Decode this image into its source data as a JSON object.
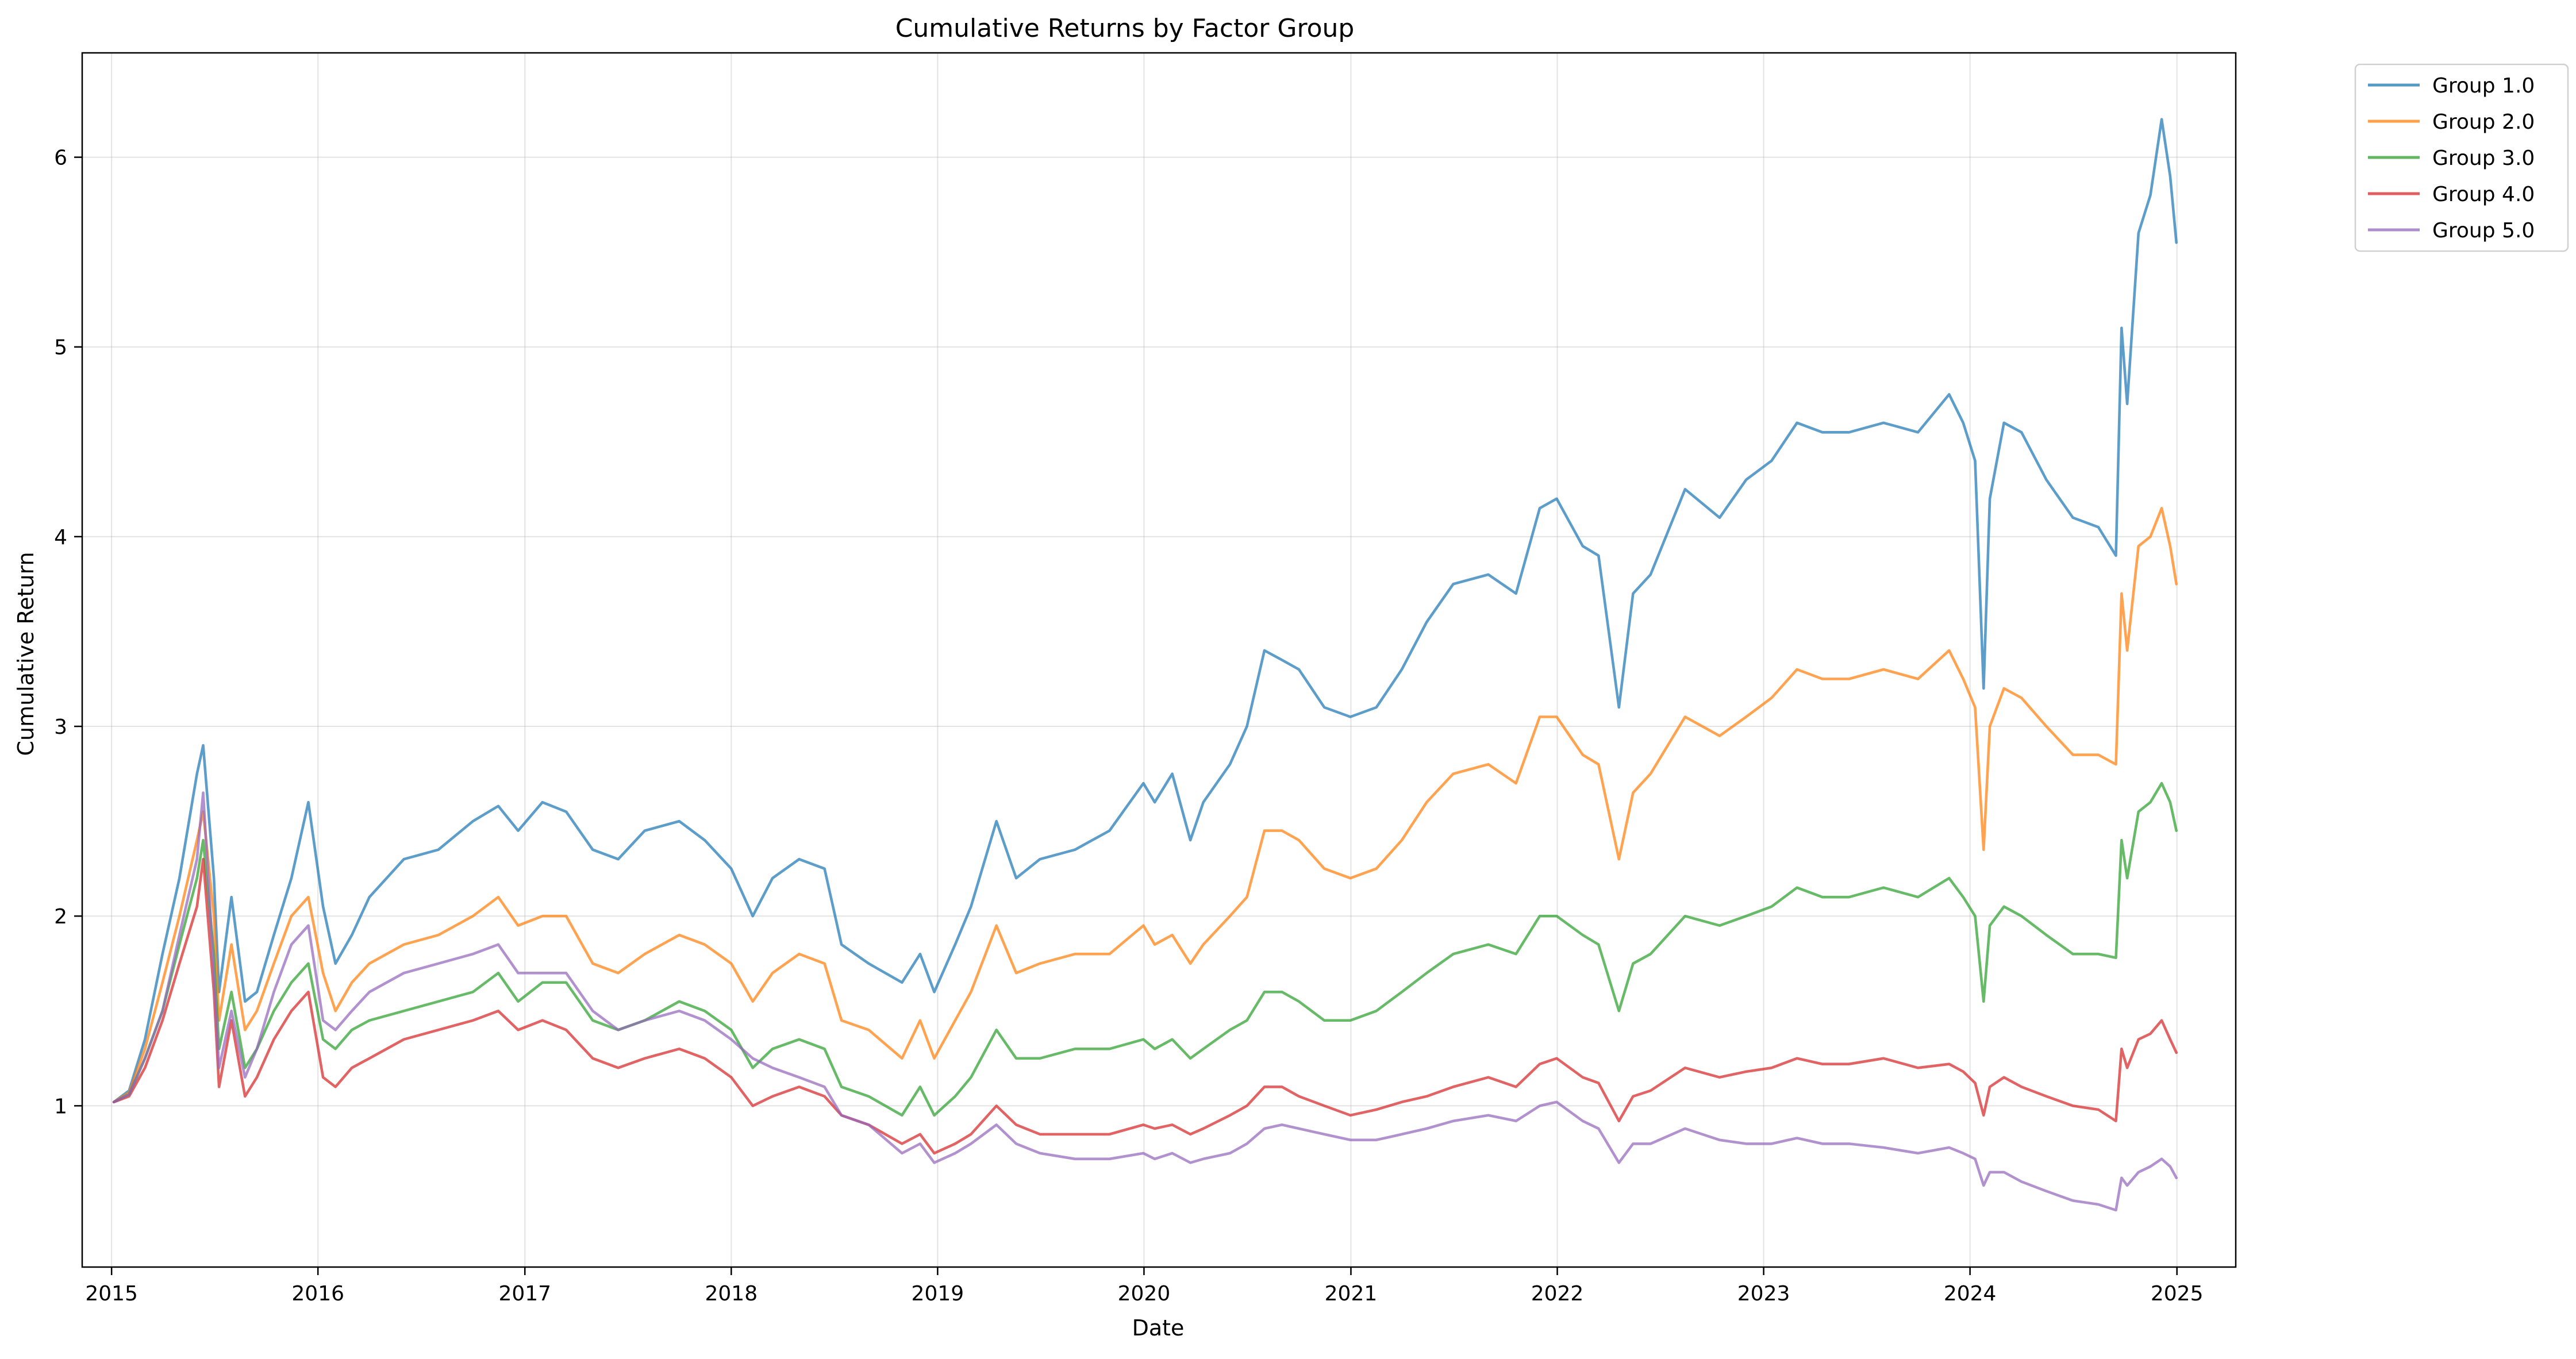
{
  "chart_data": {
    "type": "line",
    "title": "Cumulative Returns by Factor Group",
    "xlabel": "Date",
    "ylabel": "Cumulative Return",
    "x_ticks": [
      "2015",
      "2016",
      "2017",
      "2018",
      "2019",
      "2020",
      "2021",
      "2022",
      "2023",
      "2024",
      "2025"
    ],
    "y_ticks": [
      "1",
      "2",
      "3",
      "4",
      "5",
      "6"
    ],
    "xlim": [
      "2014-11-10",
      "2025-04-15"
    ],
    "ylim": [
      0.15,
      6.55
    ],
    "grid": true,
    "legend_position": "outside-top-right",
    "x": [
      "2015-01-05",
      "2015-02-01",
      "2015-03-01",
      "2015-04-01",
      "2015-05-01",
      "2015-06-01",
      "2015-06-12",
      "2015-07-01",
      "2015-07-10",
      "2015-08-01",
      "2015-08-25",
      "2015-09-15",
      "2015-10-15",
      "2015-11-15",
      "2015-12-15",
      "2016-01-10",
      "2016-02-01",
      "2016-03-01",
      "2016-04-01",
      "2016-06-01",
      "2016-08-01",
      "2016-10-01",
      "2016-11-15",
      "2016-12-20",
      "2017-02-01",
      "2017-03-15",
      "2017-05-01",
      "2017-06-15",
      "2017-08-01",
      "2017-10-01",
      "2017-11-15",
      "2018-01-01",
      "2018-02-08",
      "2018-03-15",
      "2018-05-01",
      "2018-06-15",
      "2018-07-15",
      "2018-09-01",
      "2018-10-30",
      "2018-12-01",
      "2018-12-26",
      "2019-02-01",
      "2019-03-01",
      "2019-04-15",
      "2019-05-20",
      "2019-07-01",
      "2019-09-01",
      "2019-11-01",
      "2019-12-31",
      "2020-01-20",
      "2020-02-20",
      "2020-03-23",
      "2020-04-15",
      "2020-06-01",
      "2020-07-01",
      "2020-08-01",
      "2020-09-01",
      "2020-10-01",
      "2020-11-15",
      "2020-12-31",
      "2021-02-15",
      "2021-04-01",
      "2021-05-15",
      "2021-07-01",
      "2021-09-01",
      "2021-10-20",
      "2021-12-01",
      "2021-12-31",
      "2022-02-15",
      "2022-03-15",
      "2022-04-20",
      "2022-05-15",
      "2022-06-15",
      "2022-08-15",
      "2022-10-15",
      "2022-12-01",
      "2023-01-15",
      "2023-03-01",
      "2023-04-15",
      "2023-06-01",
      "2023-08-01",
      "2023-10-01",
      "2023-11-25",
      "2023-12-20",
      "2024-01-10",
      "2024-01-25",
      "2024-02-05",
      "2024-03-01",
      "2024-04-01",
      "2024-05-15",
      "2024-07-01",
      "2024-08-15",
      "2024-09-15",
      "2024-09-25",
      "2024-10-05",
      "2024-10-25",
      "2024-11-15",
      "2024-12-05",
      "2024-12-20",
      "2024-12-31"
    ],
    "series": [
      {
        "name": "Group 1.0",
        "color": "#1f77b4",
        "values": [
          1.02,
          1.08,
          1.35,
          1.8,
          2.2,
          2.75,
          2.9,
          2.2,
          1.6,
          2.1,
          1.55,
          1.6,
          1.9,
          2.2,
          2.6,
          2.05,
          1.75,
          1.9,
          2.1,
          2.3,
          2.35,
          2.5,
          2.58,
          2.45,
          2.6,
          2.55,
          2.35,
          2.3,
          2.45,
          2.5,
          2.4,
          2.25,
          2.0,
          2.2,
          2.3,
          2.25,
          1.85,
          1.75,
          1.65,
          1.8,
          1.6,
          1.85,
          2.05,
          2.5,
          2.2,
          2.3,
          2.35,
          2.45,
          2.7,
          2.6,
          2.75,
          2.4,
          2.6,
          2.8,
          3.0,
          3.4,
          3.35,
          3.3,
          3.1,
          3.05,
          3.1,
          3.3,
          3.55,
          3.75,
          3.8,
          3.7,
          4.15,
          4.2,
          3.95,
          3.9,
          3.1,
          3.7,
          3.8,
          4.25,
          4.1,
          4.3,
          4.4,
          4.6,
          4.55,
          4.55,
          4.6,
          4.55,
          4.75,
          4.6,
          4.4,
          3.2,
          4.2,
          4.6,
          4.55,
          4.3,
          4.1,
          4.05,
          3.9,
          5.1,
          4.7,
          5.6,
          5.8,
          6.2,
          5.9,
          5.55
        ]
      },
      {
        "name": "Group 2.0",
        "color": "#ff7f0e",
        "values": [
          1.02,
          1.07,
          1.3,
          1.65,
          2.0,
          2.4,
          2.55,
          2.0,
          1.45,
          1.85,
          1.4,
          1.5,
          1.75,
          2.0,
          2.1,
          1.7,
          1.5,
          1.65,
          1.75,
          1.85,
          1.9,
          2.0,
          2.1,
          1.95,
          2.0,
          2.0,
          1.75,
          1.7,
          1.8,
          1.9,
          1.85,
          1.75,
          1.55,
          1.7,
          1.8,
          1.75,
          1.45,
          1.4,
          1.25,
          1.45,
          1.25,
          1.45,
          1.6,
          1.95,
          1.7,
          1.75,
          1.8,
          1.8,
          1.95,
          1.85,
          1.9,
          1.75,
          1.85,
          2.0,
          2.1,
          2.45,
          2.45,
          2.4,
          2.25,
          2.2,
          2.25,
          2.4,
          2.6,
          2.75,
          2.8,
          2.7,
          3.05,
          3.05,
          2.85,
          2.8,
          2.3,
          2.65,
          2.75,
          3.05,
          2.95,
          3.05,
          3.15,
          3.3,
          3.25,
          3.25,
          3.3,
          3.25,
          3.4,
          3.25,
          3.1,
          2.35,
          3.0,
          3.2,
          3.15,
          3.0,
          2.85,
          2.85,
          2.8,
          3.7,
          3.4,
          3.95,
          4.0,
          4.15,
          3.95,
          3.75
        ]
      },
      {
        "name": "Group 3.0",
        "color": "#2ca02c",
        "values": [
          1.02,
          1.06,
          1.25,
          1.5,
          1.85,
          2.2,
          2.4,
          1.8,
          1.3,
          1.6,
          1.2,
          1.3,
          1.5,
          1.65,
          1.75,
          1.35,
          1.3,
          1.4,
          1.45,
          1.5,
          1.55,
          1.6,
          1.7,
          1.55,
          1.65,
          1.65,
          1.45,
          1.4,
          1.45,
          1.55,
          1.5,
          1.4,
          1.2,
          1.3,
          1.35,
          1.3,
          1.1,
          1.05,
          0.95,
          1.1,
          0.95,
          1.05,
          1.15,
          1.4,
          1.25,
          1.25,
          1.3,
          1.3,
          1.35,
          1.3,
          1.35,
          1.25,
          1.3,
          1.4,
          1.45,
          1.6,
          1.6,
          1.55,
          1.45,
          1.45,
          1.5,
          1.6,
          1.7,
          1.8,
          1.85,
          1.8,
          2.0,
          2.0,
          1.9,
          1.85,
          1.5,
          1.75,
          1.8,
          2.0,
          1.95,
          2.0,
          2.05,
          2.15,
          2.1,
          2.1,
          2.15,
          2.1,
          2.2,
          2.1,
          2.0,
          1.55,
          1.95,
          2.05,
          2.0,
          1.9,
          1.8,
          1.8,
          1.78,
          2.4,
          2.2,
          2.55,
          2.6,
          2.7,
          2.6,
          2.45
        ]
      },
      {
        "name": "Group 4.0",
        "color": "#d62728",
        "values": [
          1.02,
          1.05,
          1.2,
          1.45,
          1.75,
          2.05,
          2.3,
          1.6,
          1.1,
          1.45,
          1.05,
          1.15,
          1.35,
          1.5,
          1.6,
          1.15,
          1.1,
          1.2,
          1.25,
          1.35,
          1.4,
          1.45,
          1.5,
          1.4,
          1.45,
          1.4,
          1.25,
          1.2,
          1.25,
          1.3,
          1.25,
          1.15,
          1.0,
          1.05,
          1.1,
          1.05,
          0.95,
          0.9,
          0.8,
          0.85,
          0.75,
          0.8,
          0.85,
          1.0,
          0.9,
          0.85,
          0.85,
          0.85,
          0.9,
          0.88,
          0.9,
          0.85,
          0.88,
          0.95,
          1.0,
          1.1,
          1.1,
          1.05,
          1.0,
          0.95,
          0.98,
          1.02,
          1.05,
          1.1,
          1.15,
          1.1,
          1.22,
          1.25,
          1.15,
          1.12,
          0.92,
          1.05,
          1.08,
          1.2,
          1.15,
          1.18,
          1.2,
          1.25,
          1.22,
          1.22,
          1.25,
          1.2,
          1.22,
          1.18,
          1.12,
          0.95,
          1.1,
          1.15,
          1.1,
          1.05,
          1.0,
          0.98,
          0.92,
          1.3,
          1.2,
          1.35,
          1.38,
          1.45,
          1.35,
          1.28
        ]
      },
      {
        "name": "Group 5.0",
        "color": "#9467bd",
        "values": [
          1.02,
          1.06,
          1.25,
          1.5,
          1.9,
          2.3,
          2.65,
          1.7,
          1.2,
          1.5,
          1.15,
          1.3,
          1.6,
          1.85,
          1.95,
          1.45,
          1.4,
          1.5,
          1.6,
          1.7,
          1.75,
          1.8,
          1.85,
          1.7,
          1.7,
          1.7,
          1.5,
          1.4,
          1.45,
          1.5,
          1.45,
          1.35,
          1.25,
          1.2,
          1.15,
          1.1,
          0.95,
          0.9,
          0.75,
          0.8,
          0.7,
          0.75,
          0.8,
          0.9,
          0.8,
          0.75,
          0.72,
          0.72,
          0.75,
          0.72,
          0.75,
          0.7,
          0.72,
          0.75,
          0.8,
          0.88,
          0.9,
          0.88,
          0.85,
          0.82,
          0.82,
          0.85,
          0.88,
          0.92,
          0.95,
          0.92,
          1.0,
          1.02,
          0.92,
          0.88,
          0.7,
          0.8,
          0.8,
          0.88,
          0.82,
          0.8,
          0.8,
          0.83,
          0.8,
          0.8,
          0.78,
          0.75,
          0.78,
          0.75,
          0.72,
          0.58,
          0.65,
          0.65,
          0.6,
          0.55,
          0.5,
          0.48,
          0.45,
          0.62,
          0.58,
          0.65,
          0.68,
          0.72,
          0.68,
          0.62
        ]
      }
    ]
  }
}
